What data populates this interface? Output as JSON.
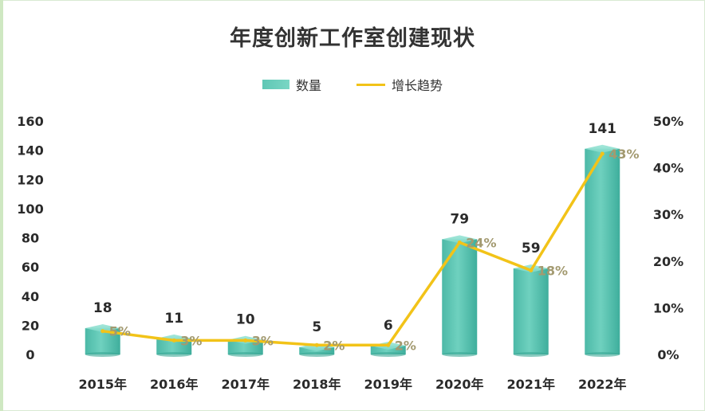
{
  "chart_data": {
    "type": "bar",
    "title": "年度创新工作室创建现状",
    "categories": [
      "2015年",
      "2016年",
      "2017年",
      "2018年",
      "2019年",
      "2020年",
      "2021年",
      "2022年"
    ],
    "series": [
      {
        "name": "数量",
        "type": "bar",
        "axis": "left",
        "values": [
          18,
          11,
          10,
          5,
          6,
          79,
          59,
          141
        ],
        "color": "#5cc4b3"
      },
      {
        "name": "增长趋势",
        "type": "line",
        "axis": "right",
        "values": [
          5,
          3,
          3,
          2,
          2,
          24,
          18,
          43
        ],
        "labels": [
          "5%",
          "3%",
          "3%",
          "2%",
          "2%",
          "24%",
          "18%",
          "43%"
        ],
        "color": "#f2c318"
      }
    ],
    "y_left": {
      "ylim": [
        0,
        160
      ],
      "ticks": [
        "0",
        "20",
        "40",
        "60",
        "80",
        "100",
        "120",
        "140",
        "160"
      ]
    },
    "y_right": {
      "ylim": [
        0,
        50
      ],
      "ticks": [
        "0%",
        "10%",
        "20%",
        "30%",
        "40%",
        "50%"
      ]
    },
    "legend_position": "top-center",
    "grid": false
  }
}
